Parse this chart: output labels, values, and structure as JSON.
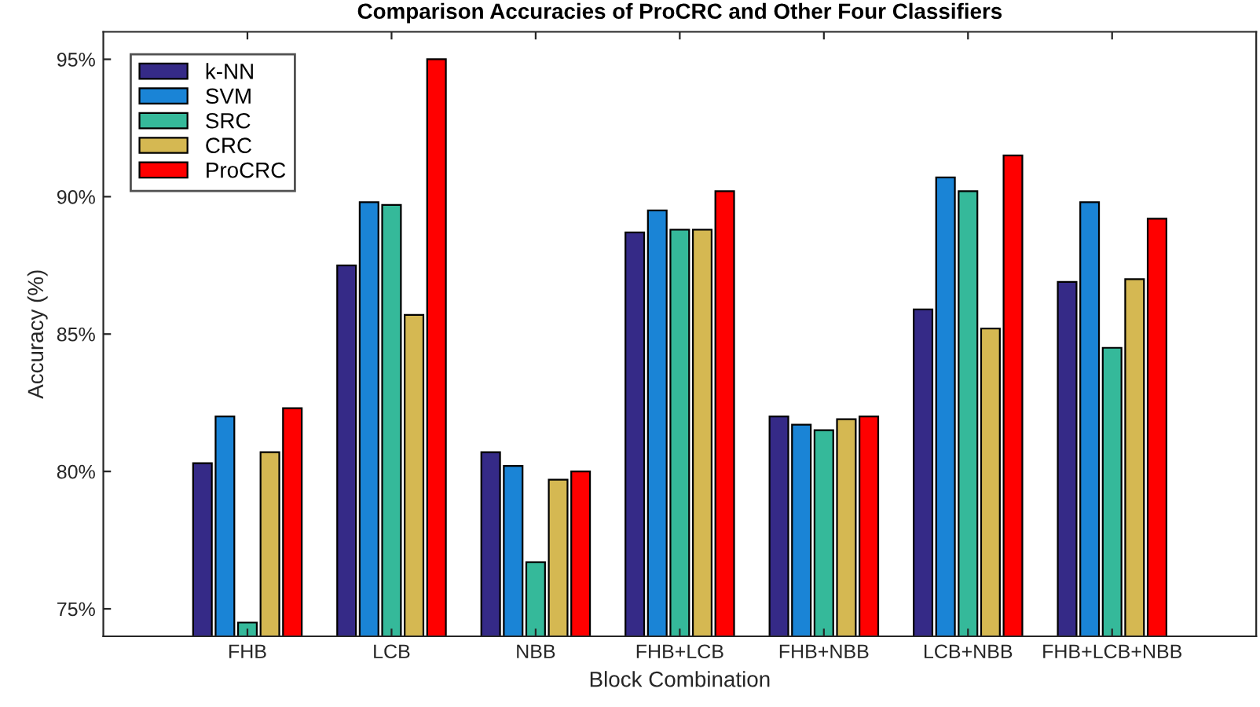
{
  "chart_data": {
    "type": "bar",
    "title": "Comparison Accuracies of ProCRC and Other Four Classifiers",
    "xlabel": "Block Combination",
    "ylabel": "Accuracy (%)",
    "categories": [
      "FHB",
      "LCB",
      "NBB",
      "FHB+LCB",
      "FHB+NBB",
      "LCB+NBB",
      "FHB+LCB+NBB"
    ],
    "series": [
      {
        "name": "k-NN",
        "color": "#352a87",
        "values": [
          80.3,
          87.5,
          80.7,
          88.7,
          82.0,
          85.9,
          86.9
        ]
      },
      {
        "name": "SVM",
        "color": "#1a84d6",
        "values": [
          82.0,
          89.8,
          80.2,
          89.5,
          81.7,
          90.7,
          89.8
        ]
      },
      {
        "name": "SRC",
        "color": "#35b99a",
        "values": [
          74.5,
          89.7,
          76.7,
          88.8,
          81.5,
          90.2,
          84.5
        ]
      },
      {
        "name": "CRC",
        "color": "#d5b852",
        "values": [
          80.7,
          85.7,
          79.7,
          88.8,
          81.9,
          85.2,
          87.0
        ]
      },
      {
        "name": "ProCRC",
        "color": "#ff0000",
        "values": [
          82.3,
          95.0,
          80.0,
          90.2,
          82.0,
          91.5,
          89.2
        ]
      }
    ],
    "ylim": [
      74,
      96
    ],
    "yticks": [
      {
        "value": 75,
        "label": "75%"
      },
      {
        "value": 80,
        "label": "80%"
      },
      {
        "value": 85,
        "label": "85%"
      },
      {
        "value": 90,
        "label": "90%"
      },
      {
        "value": 95,
        "label": "95%"
      }
    ],
    "grid": false,
    "legend": "top left"
  }
}
